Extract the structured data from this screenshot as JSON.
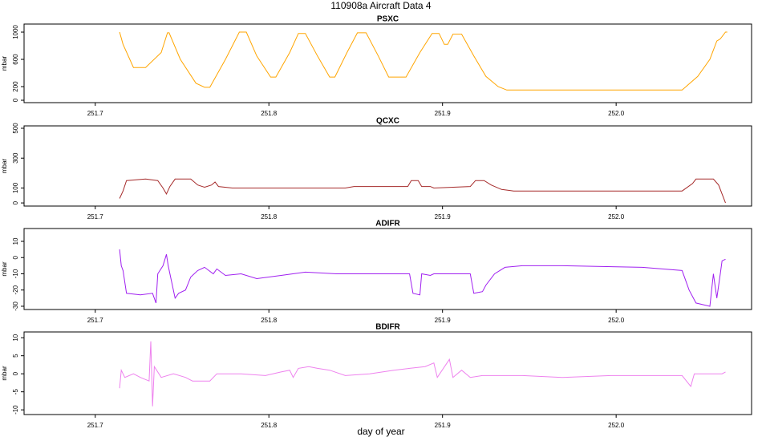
{
  "title": "110908a   Aircraft Data 4",
  "xlabel": "day of year",
  "chart_data": [
    {
      "type": "line",
      "title": "PSXC",
      "ylabel": "mbar",
      "color": "#ffa500",
      "xlim": [
        251.659,
        252.078
      ],
      "ylim": [
        -35,
        1118
      ],
      "xticks": [
        251.7,
        251.8,
        251.9,
        {
          "value": 252,
          "label": "252.0"
        }
      ],
      "yticks": [
        0,
        200,
        600,
        1000
      ],
      "x": [
        251.714,
        251.716,
        251.722,
        251.729,
        251.738,
        251.7416,
        251.7425,
        251.749,
        251.758,
        251.763,
        251.766,
        251.775,
        251.783,
        251.787,
        251.793,
        251.801,
        251.804,
        251.812,
        251.817,
        251.821,
        251.828,
        251.835,
        251.838,
        251.845,
        251.851,
        251.856,
        251.863,
        251.869,
        251.879,
        251.887,
        251.894,
        251.898,
        251.901,
        251.903,
        251.906,
        251.911,
        251.918,
        251.925,
        251.932,
        251.937,
        252.038,
        252.047,
        252.054,
        252.058,
        252.06,
        252.063,
        252.064
      ],
      "values": [
        1000,
        820,
        480,
        480,
        700,
        990,
        990,
        600,
        250,
        190,
        190,
        600,
        1000,
        1000,
        650,
        340,
        340,
        700,
        980,
        980,
        650,
        340,
        340,
        700,
        990,
        990,
        650,
        340,
        340,
        700,
        980,
        980,
        820,
        820,
        970,
        970,
        650,
        350,
        200,
        150,
        150,
        350,
        600,
        870,
        900,
        1000,
        1000
      ]
    },
    {
      "type": "line",
      "title": "QCXC",
      "ylabel": "mbar",
      "color": "#a52a2a",
      "xlim": [
        251.659,
        252.078
      ],
      "ylim": [
        -21,
        516
      ],
      "xticks": [
        251.7,
        251.8,
        251.9,
        {
          "value": 252,
          "label": "252.0"
        }
      ],
      "yticks": [
        0,
        100,
        300,
        500
      ],
      "x": [
        251.714,
        251.716,
        251.718,
        251.729,
        251.736,
        251.739,
        251.741,
        251.743,
        251.746,
        251.755,
        251.759,
        251.763,
        251.767,
        251.769,
        251.771,
        251.779,
        251.83,
        251.844,
        251.849,
        251.88,
        251.882,
        251.886,
        251.888,
        251.893,
        251.895,
        251.916,
        251.919,
        251.924,
        251.928,
        251.934,
        251.941,
        252.038,
        252.044,
        252.046,
        252.056,
        252.059,
        252.061,
        252.063
      ],
      "values": [
        30,
        80,
        150,
        160,
        150,
        100,
        60,
        110,
        160,
        160,
        120,
        105,
        120,
        140,
        110,
        100,
        100,
        100,
        110,
        110,
        150,
        150,
        110,
        110,
        100,
        110,
        150,
        150,
        120,
        90,
        80,
        80,
        130,
        160,
        160,
        120,
        60,
        0
      ]
    },
    {
      "type": "line",
      "title": "ADIFR",
      "ylabel": "mbar",
      "color": "#a020f0",
      "xlim": [
        251.659,
        252.078
      ],
      "ylim": [
        -32,
        17.9
      ],
      "xticks": [
        251.7,
        251.8,
        251.9,
        {
          "value": 252,
          "label": "252.0"
        }
      ],
      "yticks": [
        -30,
        -20,
        -10,
        0,
        10
      ],
      "x": [
        251.714,
        251.715,
        251.716,
        251.718,
        251.726,
        251.733,
        251.735,
        251.736,
        251.739,
        251.741,
        251.742,
        251.744,
        251.746,
        251.748,
        251.752,
        251.755,
        251.759,
        251.763,
        251.768,
        251.77,
        251.775,
        251.784,
        251.793,
        251.807,
        251.821,
        251.839,
        251.853,
        251.867,
        251.881,
        251.883,
        251.887,
        251.888,
        251.893,
        251.895,
        251.916,
        251.918,
        251.923,
        251.925,
        251.93,
        251.936,
        251.946,
        251.969,
        252.015,
        252.038,
        252.042,
        252.046,
        252.054,
        252.056,
        252.058,
        252.06,
        252.061,
        252.063
      ],
      "values": [
        5,
        -5,
        -8,
        -22,
        -23,
        -22,
        -28,
        -10,
        -5,
        2,
        -5,
        -15,
        -25,
        -22,
        -20,
        -12,
        -8,
        -6,
        -10,
        -7,
        -11,
        -10,
        -13,
        -11,
        -9,
        -10,
        -10,
        -10,
        -10,
        -22,
        -23,
        -10,
        -11,
        -10,
        -10,
        -22,
        -21,
        -17,
        -10,
        -6,
        -5,
        -5,
        -6,
        -8,
        -20,
        -28,
        -30,
        -10,
        -25,
        -10,
        -2,
        -1
      ]
    },
    {
      "type": "line",
      "title": "BDIFR",
      "ylabel": "mbar",
      "color": "#ee82ee",
      "xlim": [
        251.659,
        252.078
      ],
      "ylim": [
        -11.3,
        11.6
      ],
      "xticks": [
        251.7,
        251.8,
        251.9,
        {
          "value": 252,
          "label": "252.0"
        }
      ],
      "yticks": [
        -10,
        -5,
        0,
        5,
        10
      ],
      "x": [
        251.714,
        251.715,
        251.717,
        251.722,
        251.726,
        251.731,
        251.732,
        251.733,
        251.734,
        251.738,
        251.745,
        251.752,
        251.756,
        251.766,
        251.77,
        251.784,
        251.798,
        251.807,
        251.812,
        251.814,
        251.817,
        251.823,
        251.828,
        251.835,
        251.844,
        251.858,
        251.872,
        251.881,
        251.89,
        251.895,
        251.897,
        251.904,
        251.906,
        251.911,
        251.916,
        251.923,
        251.946,
        251.969,
        251.997,
        252.038,
        252.043,
        252.045,
        252.061,
        252.063
      ],
      "values": [
        -4,
        1,
        -1,
        0,
        -1,
        -2,
        9,
        -9,
        2,
        -1,
        0,
        -1,
        -2,
        -2,
        0,
        0,
        -0.5,
        0.5,
        1,
        -1,
        1.5,
        2,
        1.5,
        1,
        -0.5,
        0,
        1,
        1.5,
        2,
        3,
        -1,
        4,
        -1,
        1,
        -1,
        -0.5,
        -0.5,
        -1,
        -0.5,
        -0.5,
        -3.5,
        0,
        0,
        0.5
      ]
    }
  ]
}
